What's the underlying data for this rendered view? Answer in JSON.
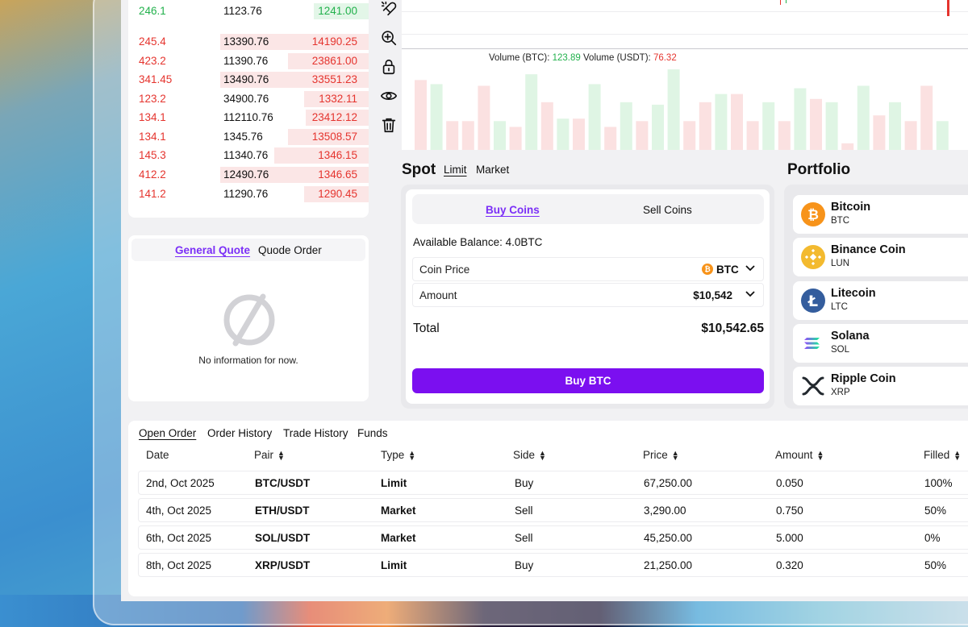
{
  "orderbook": {
    "rows": [
      {
        "price": "246.1",
        "amount": "1123.76",
        "total": "1241.00",
        "side": "buy",
        "depth": 0.23
      },
      {
        "price": "245.4",
        "amount": "13390.76",
        "total": "14190.25",
        "side": "sell",
        "depth": 0.62
      },
      {
        "price": "423.2",
        "amount": "11390.76",
        "total": "23861.00",
        "side": "sell",
        "depth": 0.34
      },
      {
        "price": "341.45",
        "amount": "13490.76",
        "total": "33551.23",
        "side": "sell",
        "depth": 0.62
      },
      {
        "price": "123.2",
        "amount": "34900.76",
        "total": "1332.11",
        "side": "sell",
        "depth": 0.27
      },
      {
        "price": "134.1",
        "amount": "112110.76",
        "total": "23412.12",
        "side": "sell",
        "depth": 0.26
      },
      {
        "price": "134.1",
        "amount": "1345.76",
        "total": "13508.57",
        "side": "sell",
        "depth": 0.34
      },
      {
        "price": "145.3",
        "amount": "11340.76",
        "total": "1346.15",
        "side": "sell",
        "depth": 0.4
      },
      {
        "price": "412.2",
        "amount": "12490.76",
        "total": "1346.65",
        "side": "sell",
        "depth": 0.62
      },
      {
        "price": "141.2",
        "amount": "11290.76",
        "total": "1290.45",
        "side": "sell",
        "depth": 0.27
      }
    ]
  },
  "tools": [
    "magnet-icon",
    "zoom-in-icon",
    "lock-icon",
    "eye-icon",
    "trash-icon"
  ],
  "volume": {
    "label_btc": "Volume (BTC):",
    "value_btc": "123.89",
    "label_usdt": "Volume (USDT):",
    "value_usdt": "76.32",
    "bars": [
      {
        "v": 0.85,
        "up": false
      },
      {
        "v": 0.8,
        "up": true
      },
      {
        "v": 0.35,
        "up": false
      },
      {
        "v": 0.35,
        "up": false
      },
      {
        "v": 0.78,
        "up": false
      },
      {
        "v": 0.35,
        "up": true
      },
      {
        "v": 0.28,
        "up": false
      },
      {
        "v": 0.92,
        "up": true
      },
      {
        "v": 0.58,
        "up": false
      },
      {
        "v": 0.38,
        "up": true
      },
      {
        "v": 0.38,
        "up": false
      },
      {
        "v": 0.8,
        "up": true
      },
      {
        "v": 0.28,
        "up": false
      },
      {
        "v": 0.58,
        "up": true
      },
      {
        "v": 0.35,
        "up": false
      },
      {
        "v": 0.55,
        "up": true
      },
      {
        "v": 0.98,
        "up": true
      },
      {
        "v": 0.35,
        "up": false
      },
      {
        "v": 0.58,
        "up": false
      },
      {
        "v": 0.68,
        "up": true
      },
      {
        "v": 0.68,
        "up": false
      },
      {
        "v": 0.35,
        "up": false
      },
      {
        "v": 0.58,
        "up": true
      },
      {
        "v": 0.35,
        "up": false
      },
      {
        "v": 0.75,
        "up": true
      },
      {
        "v": 0.62,
        "up": false
      },
      {
        "v": 0.58,
        "up": true
      },
      {
        "v": 0.08,
        "up": false
      },
      {
        "v": 0.78,
        "up": true
      },
      {
        "v": 0.42,
        "up": false
      },
      {
        "v": 0.58,
        "up": true
      },
      {
        "v": 0.35,
        "up": false
      },
      {
        "v": 0.78,
        "up": false
      },
      {
        "v": 0.35,
        "up": true
      }
    ]
  },
  "quote": {
    "tab_active": "General Quote",
    "tab_other": "Quode Order",
    "empty_text": "No information for now."
  },
  "spot": {
    "title": "Spot",
    "tab_limit": "Limit",
    "tab_market": "Market",
    "buy_tab": "Buy Coins",
    "sell_tab": "Sell Coins",
    "balance": "Available Balance: 4.0BTC",
    "coin_price_label": "Coin Price",
    "coin_price_value": "BTC",
    "amount_label": "Amount",
    "amount_value": "$10,542",
    "total_label": "Total",
    "total_value": "$10,542.65",
    "buy_button": "Buy BTC"
  },
  "portfolio": {
    "title": "Portfolio",
    "items": [
      {
        "name": "Bitcoin",
        "symbol": "BTC",
        "icon": "bitcoin-icon",
        "color": "#f7931a"
      },
      {
        "name": "Binance Coin",
        "symbol": "LUN",
        "icon": "binance-icon",
        "color": "#f3ba2f"
      },
      {
        "name": "Litecoin",
        "symbol": "LTC",
        "icon": "litecoin-icon",
        "color": "#345d9d"
      },
      {
        "name": "Solana",
        "symbol": "SOL",
        "icon": "solana-icon",
        "color": "#14f195"
      },
      {
        "name": "Ripple Coin",
        "symbol": "XRP",
        "icon": "ripple-icon",
        "color": "#23292f"
      }
    ]
  },
  "orders": {
    "tabs": [
      "Open Order",
      "Order History",
      "Trade History",
      "Funds"
    ],
    "headers": [
      "Date",
      "Pair",
      "Type",
      "Side",
      "Price",
      "Amount",
      "Filled"
    ],
    "rows": [
      [
        "2nd, Oct 2025",
        "BTC/USDT",
        "Limit",
        "Buy",
        "67,250.00",
        "0.050",
        "100%"
      ],
      [
        "4th, Oct 2025",
        "ETH/USDT",
        "Market",
        "Sell",
        "3,290.00",
        "0.750",
        "50%"
      ],
      [
        "6th, Oct 2025",
        "SOL/USDT",
        "Market",
        "Sell",
        "45,250.00",
        "5.000",
        "0%"
      ],
      [
        "8th, Oct 2025",
        "XRP/USDT",
        "Limit",
        "Buy",
        "21,250.00",
        "0.320",
        "50%"
      ]
    ]
  },
  "colors": {
    "accent": "#7b0ff0",
    "up": "#22b14c",
    "down": "#e5342e"
  }
}
